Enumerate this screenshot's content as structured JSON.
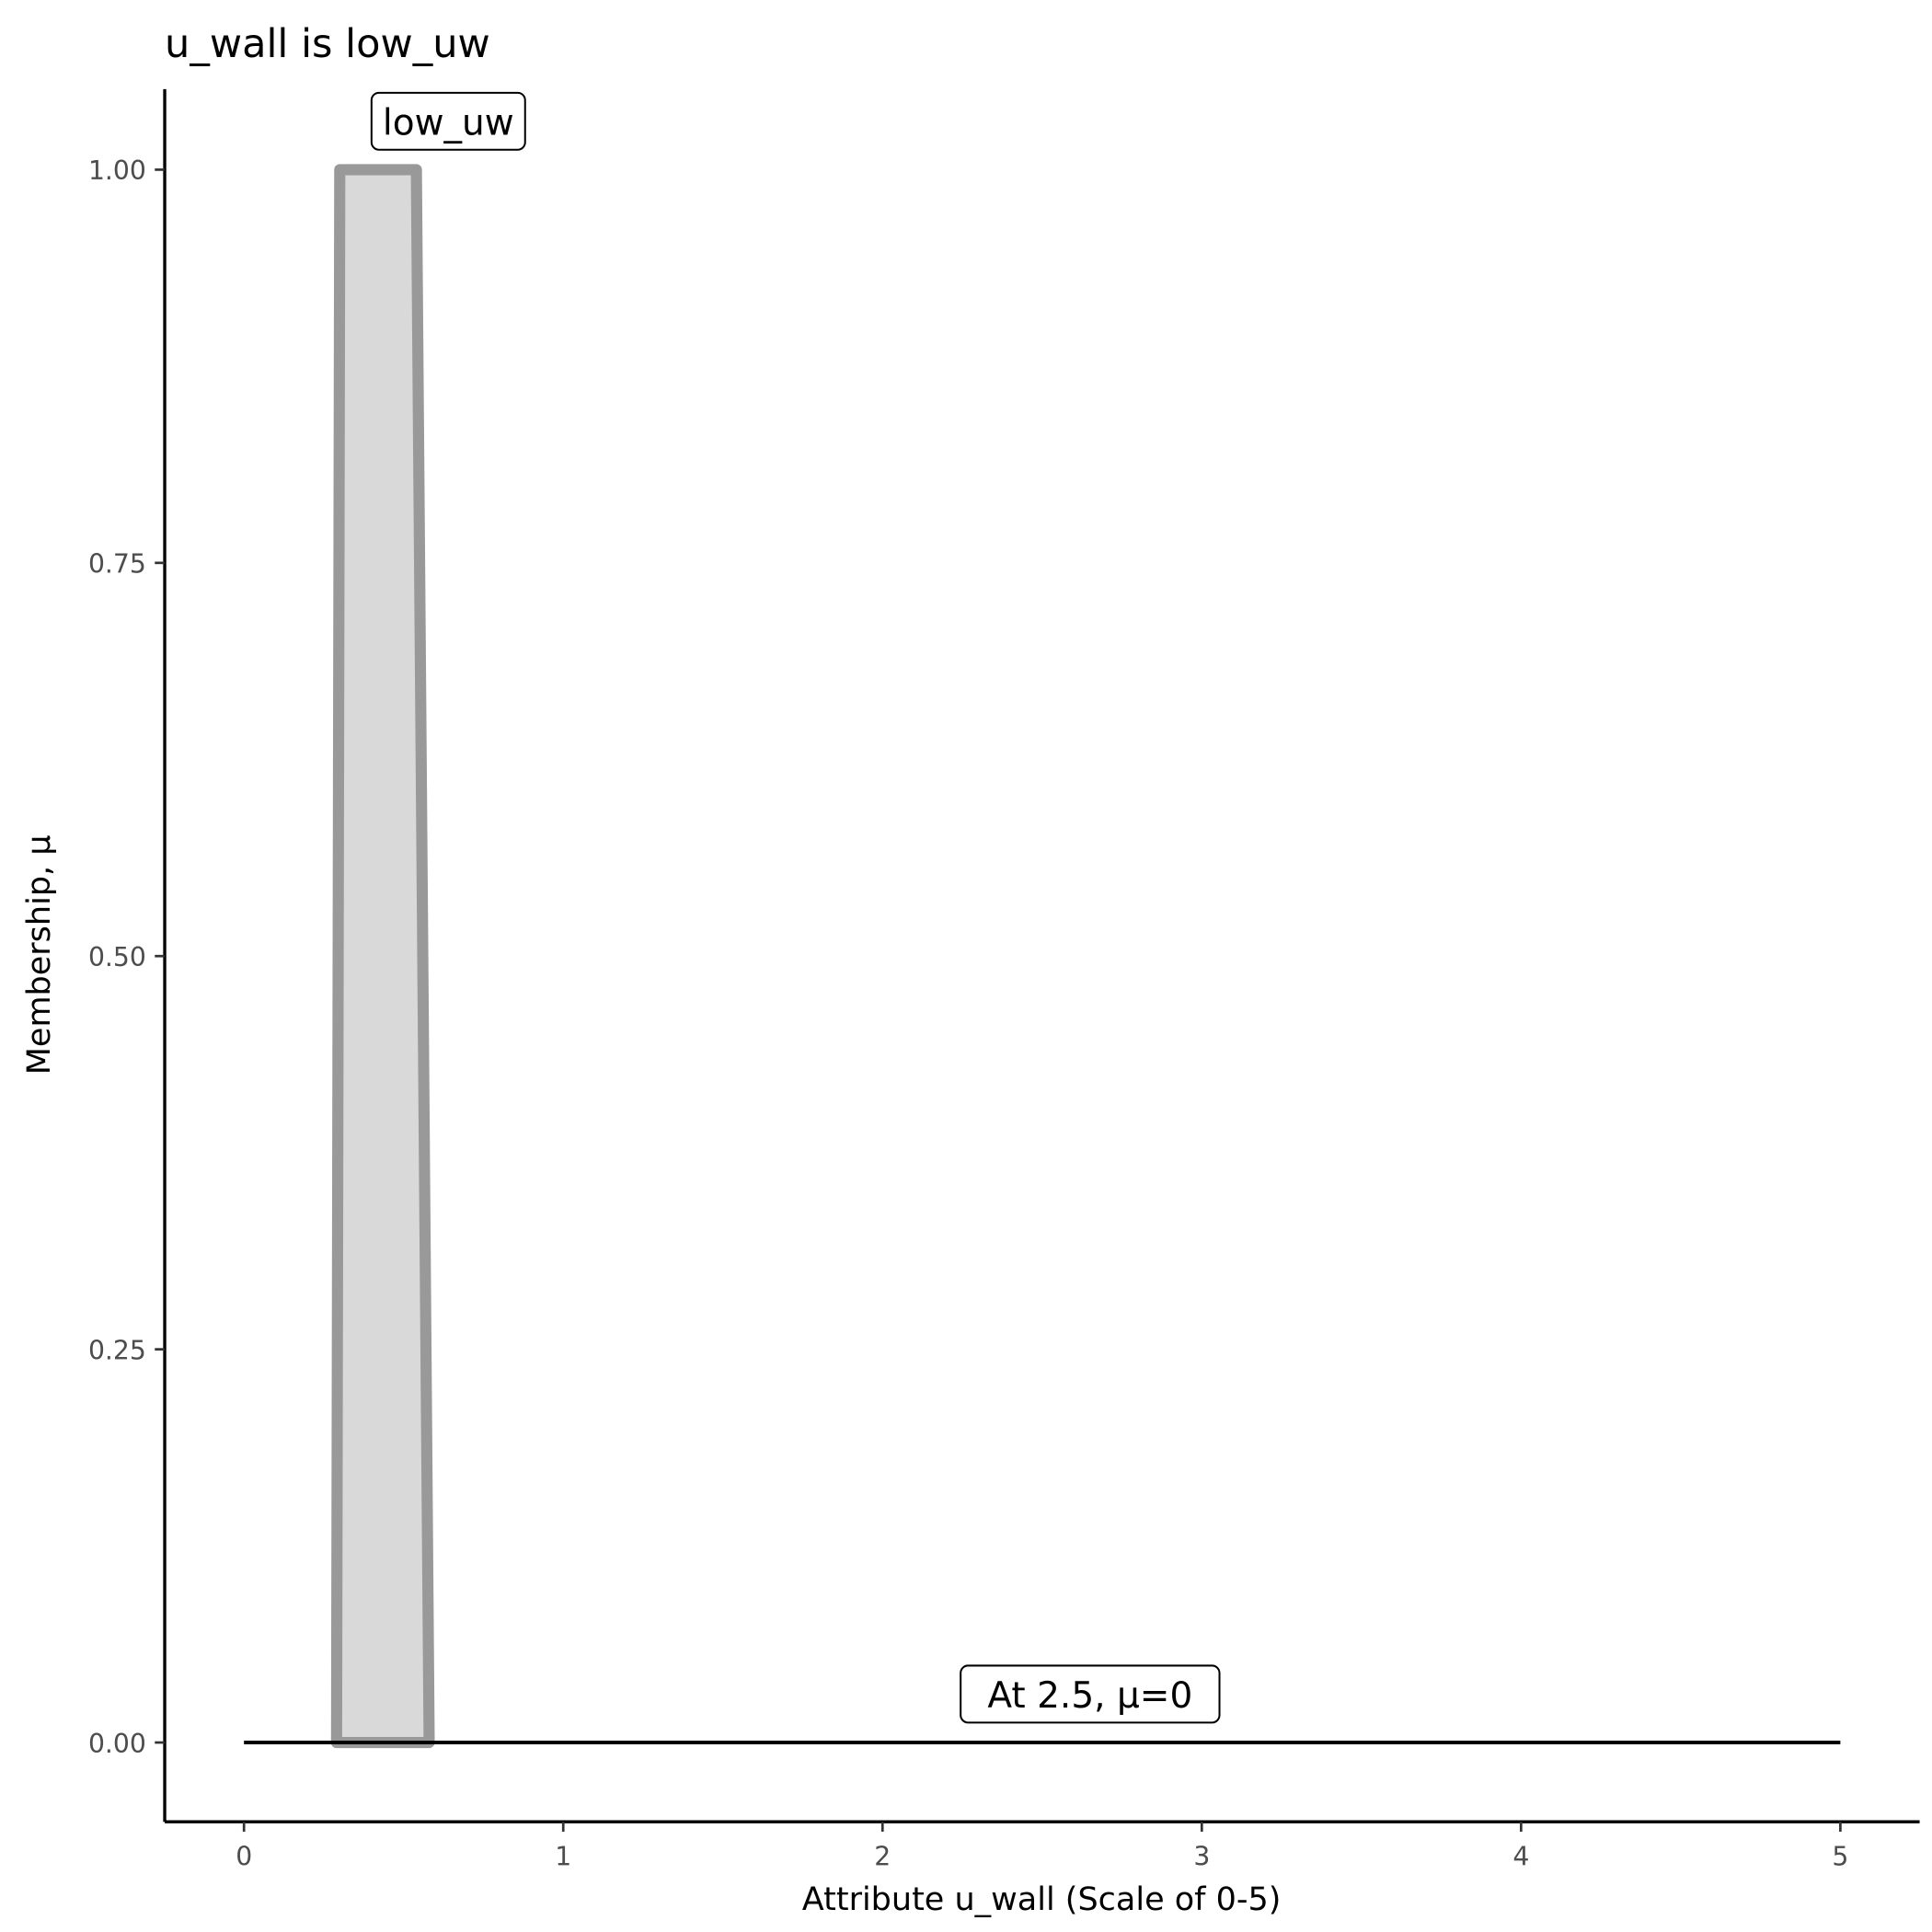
{
  "chart_data": {
    "type": "area",
    "title": "u_wall is low_uw",
    "xlabel": "Attribute u_wall (Scale of 0-5)",
    "ylabel": "Membership, μ",
    "xlim": [
      -0.25,
      5.25
    ],
    "ylim": [
      -0.05,
      1.05
    ],
    "x_ticks": [
      0,
      1,
      2,
      3,
      4,
      5
    ],
    "x_tick_labels": [
      "0",
      "1",
      "2",
      "3",
      "4",
      "5"
    ],
    "y_ticks": [
      0,
      0.25,
      0.5,
      0.75,
      1
    ],
    "y_tick_labels": [
      "0.00",
      "0.25",
      "0.50",
      "0.75",
      "1.00"
    ],
    "grid": false,
    "series": [
      {
        "name": "low_uw",
        "x": [
          0.29,
          0.3,
          0.54,
          0.58
        ],
        "y": [
          0,
          1,
          1,
          0
        ],
        "fill": "#d9d9d9",
        "stroke": "#999999"
      }
    ],
    "reference_line": {
      "x": [
        0,
        5
      ],
      "y": 0,
      "color": "#000000"
    },
    "annotations": [
      {
        "text": "low_uw",
        "x": 0.64,
        "y": 1.03
      },
      {
        "text": "At 2.5, μ=0",
        "x": 2.65,
        "y": 0.03
      }
    ]
  }
}
